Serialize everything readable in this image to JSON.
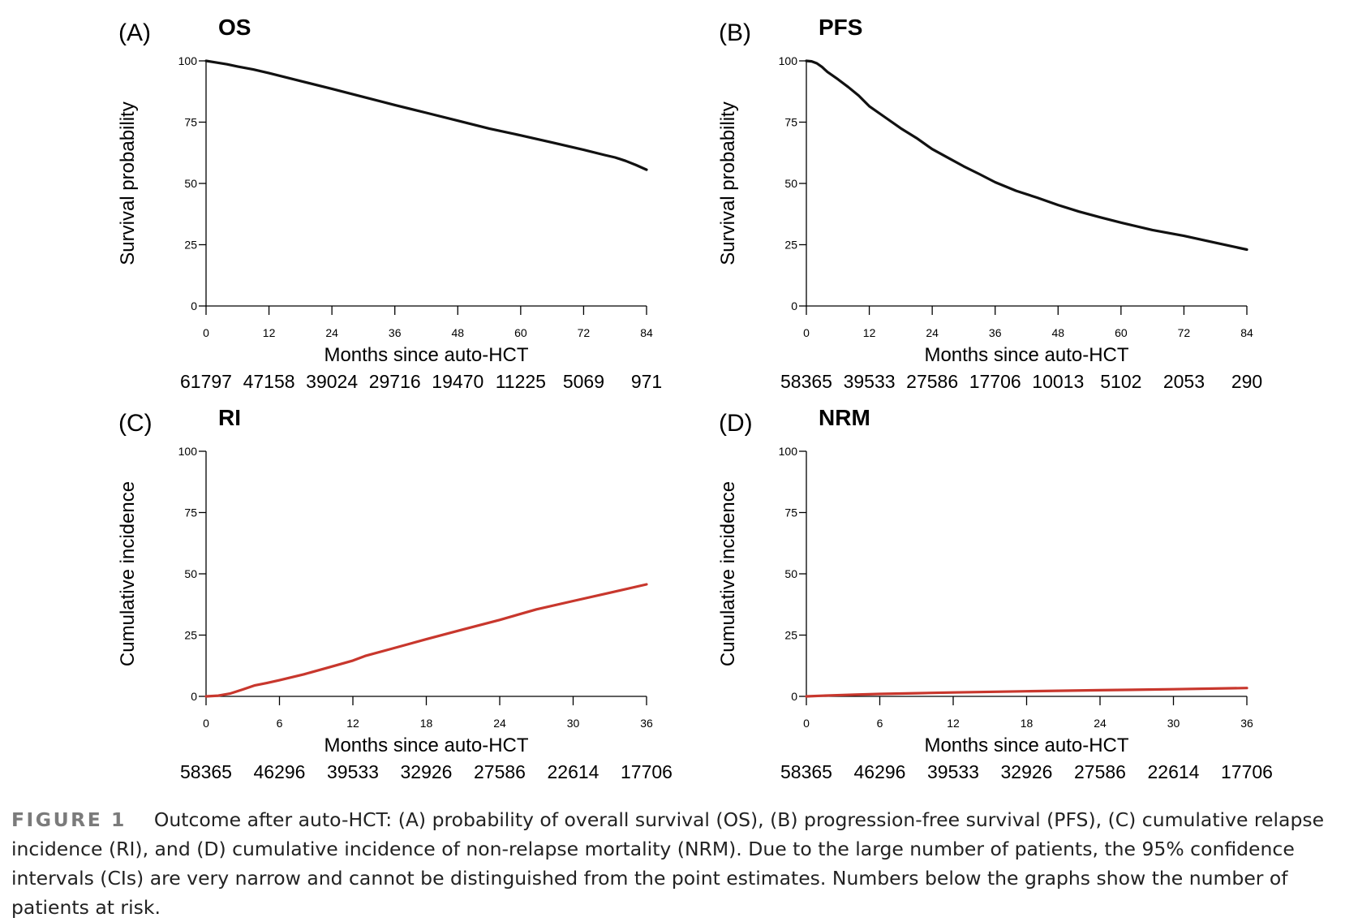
{
  "chart_data": [
    {
      "type": "line",
      "panel_label": "(A)",
      "title": "OS",
      "xlabel": "Months since auto-HCT",
      "ylabel": "Survival probability",
      "xlim": [
        0,
        84
      ],
      "ylim": [
        0,
        100
      ],
      "xticks": [
        0,
        12,
        24,
        36,
        48,
        60,
        72,
        84
      ],
      "yticks": [
        0,
        25,
        50,
        75,
        100
      ],
      "line_color": "#111111",
      "at_risk": [
        "61797",
        "47158",
        "39024",
        "29716",
        "19470",
        "11225",
        "5069",
        "971"
      ],
      "series": [
        {
          "x": [
            0,
            2,
            4,
            6,
            9,
            12,
            18,
            24,
            30,
            36,
            42,
            48,
            54,
            60,
            66,
            72,
            76,
            78,
            80,
            82,
            84
          ],
          "y": [
            100,
            99.3,
            98.6,
            97.7,
            96.5,
            95,
            91.8,
            88.6,
            85.3,
            82,
            78.8,
            75.6,
            72.4,
            69.6,
            66.7,
            63.7,
            61.6,
            60.6,
            59.2,
            57.5,
            55.6
          ]
        }
      ]
    },
    {
      "type": "line",
      "panel_label": "(B)",
      "title": "PFS",
      "xlabel": "Months since auto-HCT",
      "ylabel": "Survival probability",
      "xlim": [
        0,
        84
      ],
      "ylim": [
        0,
        100
      ],
      "xticks": [
        0,
        12,
        24,
        36,
        48,
        60,
        72,
        84
      ],
      "yticks": [
        0,
        25,
        50,
        75,
        100
      ],
      "line_color": "#111111",
      "at_risk": [
        "58365",
        "39533",
        "27586",
        "17706",
        "10013",
        "5102",
        "2053",
        "290"
      ],
      "series": [
        {
          "x": [
            0,
            1,
            2,
            3,
            4,
            6,
            8,
            10,
            12,
            15,
            18,
            21,
            24,
            27,
            30,
            33,
            36,
            40,
            44,
            48,
            52,
            56,
            60,
            66,
            72,
            78,
            84
          ],
          "y": [
            100,
            99.8,
            99,
            97.5,
            95.5,
            92.5,
            89.3,
            85.8,
            81.5,
            77,
            72.5,
            68.5,
            64,
            60.5,
            57,
            53.8,
            50.5,
            47,
            44.2,
            41.2,
            38.5,
            36.2,
            34,
            31,
            28.6,
            25.8,
            23
          ]
        }
      ]
    },
    {
      "type": "line",
      "panel_label": "(C)",
      "title": "RI",
      "xlabel": "Months since auto-HCT",
      "ylabel": "Cumulative incidence",
      "xlim": [
        0,
        36
      ],
      "ylim": [
        0,
        100
      ],
      "xticks": [
        0,
        6,
        12,
        18,
        24,
        30,
        36
      ],
      "yticks": [
        0,
        25,
        50,
        75,
        100
      ],
      "line_color": "#c8372d",
      "at_risk": [
        "58365",
        "46296",
        "39533",
        "32926",
        "27586",
        "22614",
        "17706"
      ],
      "series": [
        {
          "x": [
            0,
            1,
            2,
            3,
            4,
            5,
            6,
            8,
            10,
            12,
            13,
            15,
            18,
            21,
            24,
            27,
            30,
            33,
            36
          ],
          "y": [
            0,
            0.3,
            1.2,
            2.8,
            4.5,
            5.5,
            6.6,
            9,
            11.8,
            14.6,
            16.5,
            19.2,
            23.3,
            27.3,
            31.2,
            35.5,
            38.9,
            42.3,
            45.7
          ]
        }
      ]
    },
    {
      "type": "line",
      "panel_label": "(D)",
      "title": "NRM",
      "xlabel": "Months since auto-HCT",
      "ylabel": "Cumulative incidence",
      "xlim": [
        0,
        36
      ],
      "ylim": [
        0,
        100
      ],
      "xticks": [
        0,
        6,
        12,
        18,
        24,
        30,
        36
      ],
      "yticks": [
        0,
        25,
        50,
        75,
        100
      ],
      "line_color": "#c8372d",
      "at_risk": [
        "58365",
        "46296",
        "39533",
        "32926",
        "27586",
        "22614",
        "17706"
      ],
      "series": [
        {
          "x": [
            0,
            2,
            4,
            6,
            9,
            12,
            18,
            24,
            30,
            36
          ],
          "y": [
            0,
            0.4,
            0.7,
            1.0,
            1.3,
            1.6,
            2.1,
            2.5,
            2.9,
            3.4
          ]
        }
      ]
    }
  ],
  "caption": {
    "label": "FIGURE 1",
    "text": "Outcome after auto-HCT: (A) probability of overall survival (OS), (B) progression-free survival (PFS), (C) cumulative relapse incidence (RI), and (D) cumulative incidence of non-relapse mortality (NRM). Due to the large number of patients, the 95% confidence intervals (CIs) are very narrow and cannot be distinguished from the point estimates. Numbers below the graphs show the number of patients at risk."
  }
}
